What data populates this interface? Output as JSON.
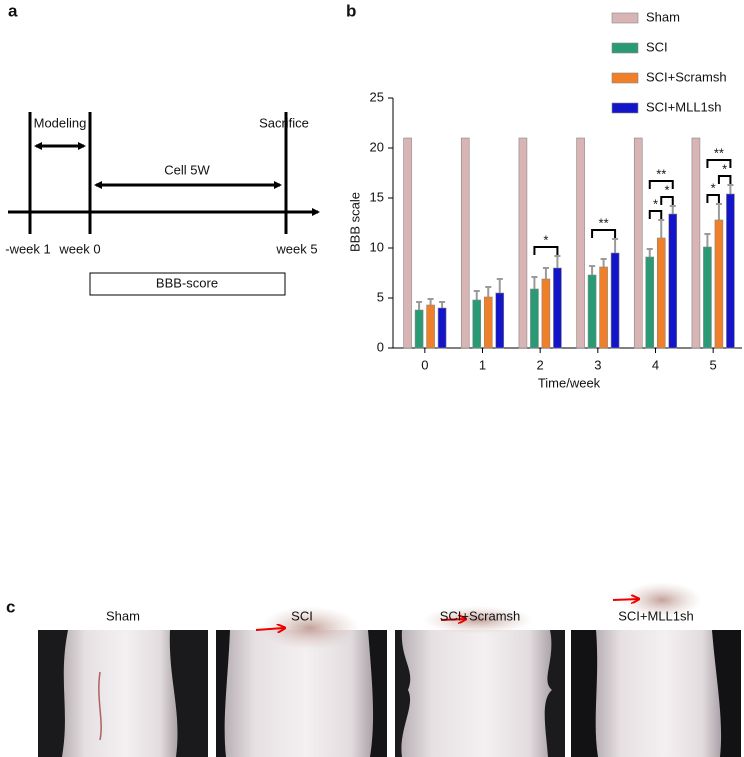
{
  "panel_labels": [
    "a",
    "b",
    "c"
  ],
  "timeline": {
    "modeling": "Modeling",
    "sacrifice": "Sacrifice",
    "duration": "Cell 5W",
    "ticks": [
      "-week 1",
      "week 0",
      "week 5"
    ],
    "box": "BBB-score"
  },
  "chart_data": {
    "type": "bar",
    "ylabel": "BBB scale",
    "xlabel": "Time/week",
    "categories": [
      "0",
      "1",
      "2",
      "3",
      "4",
      "5"
    ],
    "series": [
      {
        "name": "Sham",
        "color": "#d8b4b4",
        "values": [
          21,
          21,
          21,
          21,
          21,
          21
        ]
      },
      {
        "name": "SCI",
        "color": "#2a9a74",
        "values": [
          3.8,
          4.8,
          5.9,
          7.3,
          9.1,
          10.1
        ],
        "errors": [
          0.8,
          0.9,
          1.2,
          0.9,
          0.8,
          1.3
        ]
      },
      {
        "name": "SCI+Scramsh",
        "color": "#f07f2a",
        "values": [
          4.3,
          5.1,
          6.9,
          8.1,
          11.0,
          12.8
        ],
        "errors": [
          0.6,
          1.0,
          1.1,
          0.8,
          1.8,
          1.6
        ]
      },
      {
        "name": "SCI+MLL1sh",
        "color": "#1414c8",
        "values": [
          4.0,
          5.5,
          8.0,
          9.5,
          13.4,
          15.4
        ],
        "errors": [
          0.6,
          1.4,
          1.2,
          1.4,
          0.8,
          0.9
        ]
      }
    ],
    "ylim": [
      0,
      25
    ],
    "yticks": [
      0,
      5,
      10,
      15,
      20,
      25
    ],
    "legend": "upper right",
    "significance": [
      {
        "category": "2",
        "pair": [
          "SCI",
          "SCI+MLL1sh"
        ],
        "label": "*"
      },
      {
        "category": "3",
        "pair": [
          "SCI",
          "SCI+MLL1sh"
        ],
        "label": "**"
      },
      {
        "category": "4",
        "pair": [
          "SCI",
          "SCI+Scramsh"
        ],
        "label": "*"
      },
      {
        "category": "4",
        "pair": [
          "SCI+Scramsh",
          "SCI+MLL1sh"
        ],
        "label": "*"
      },
      {
        "category": "4",
        "pair": [
          "SCI",
          "SCI+MLL1sh"
        ],
        "label": "**"
      },
      {
        "category": "5",
        "pair": [
          "SCI",
          "SCI+Scramsh"
        ],
        "label": "*"
      },
      {
        "category": "5",
        "pair": [
          "SCI+Scramsh",
          "SCI+MLL1sh"
        ],
        "label": "*"
      },
      {
        "category": "5",
        "pair": [
          "SCI",
          "SCI+MLL1sh"
        ],
        "label": "**"
      }
    ]
  },
  "photos": {
    "titles": [
      "Sham",
      "SCI",
      "SCI+Scramsh",
      "SCI+MLL1sh"
    ]
  }
}
